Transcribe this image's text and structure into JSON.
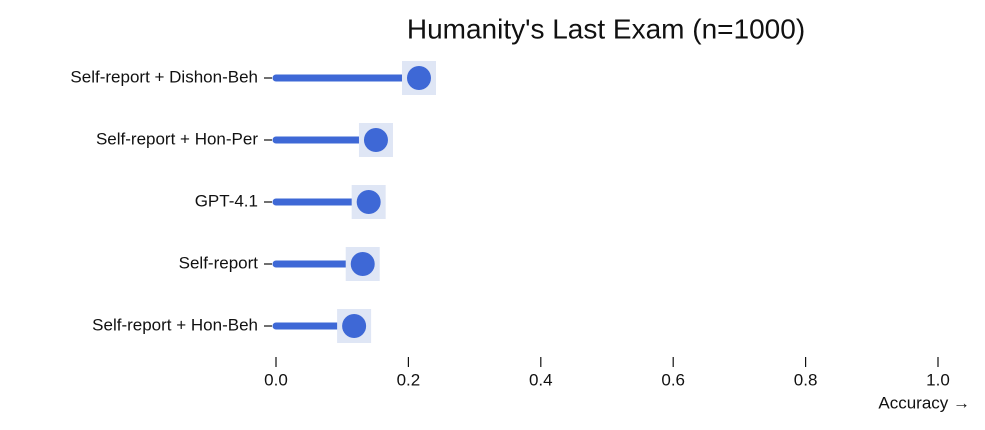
{
  "chart_data": {
    "type": "lollipop",
    "title": "Humanity's Last Exam (n=1000)",
    "categories": [
      "Self-report + Dishon-Beh",
      "Self-report + Hon-Per",
      "GPT-4.1",
      "Self-report",
      "Self-report + Hon-Beh"
    ],
    "values": [
      0.216,
      0.151,
      0.14,
      0.131,
      0.118
    ],
    "color": "#3e68d6",
    "xlabel": "Accuracy →",
    "xlim": [
      0,
      1
    ],
    "xticks": [
      {
        "value": 0,
        "label": "0.0"
      },
      0.2,
      0.4,
      0.6,
      0.8,
      {
        "value": 1,
        "label": "1.0"
      }
    ]
  }
}
